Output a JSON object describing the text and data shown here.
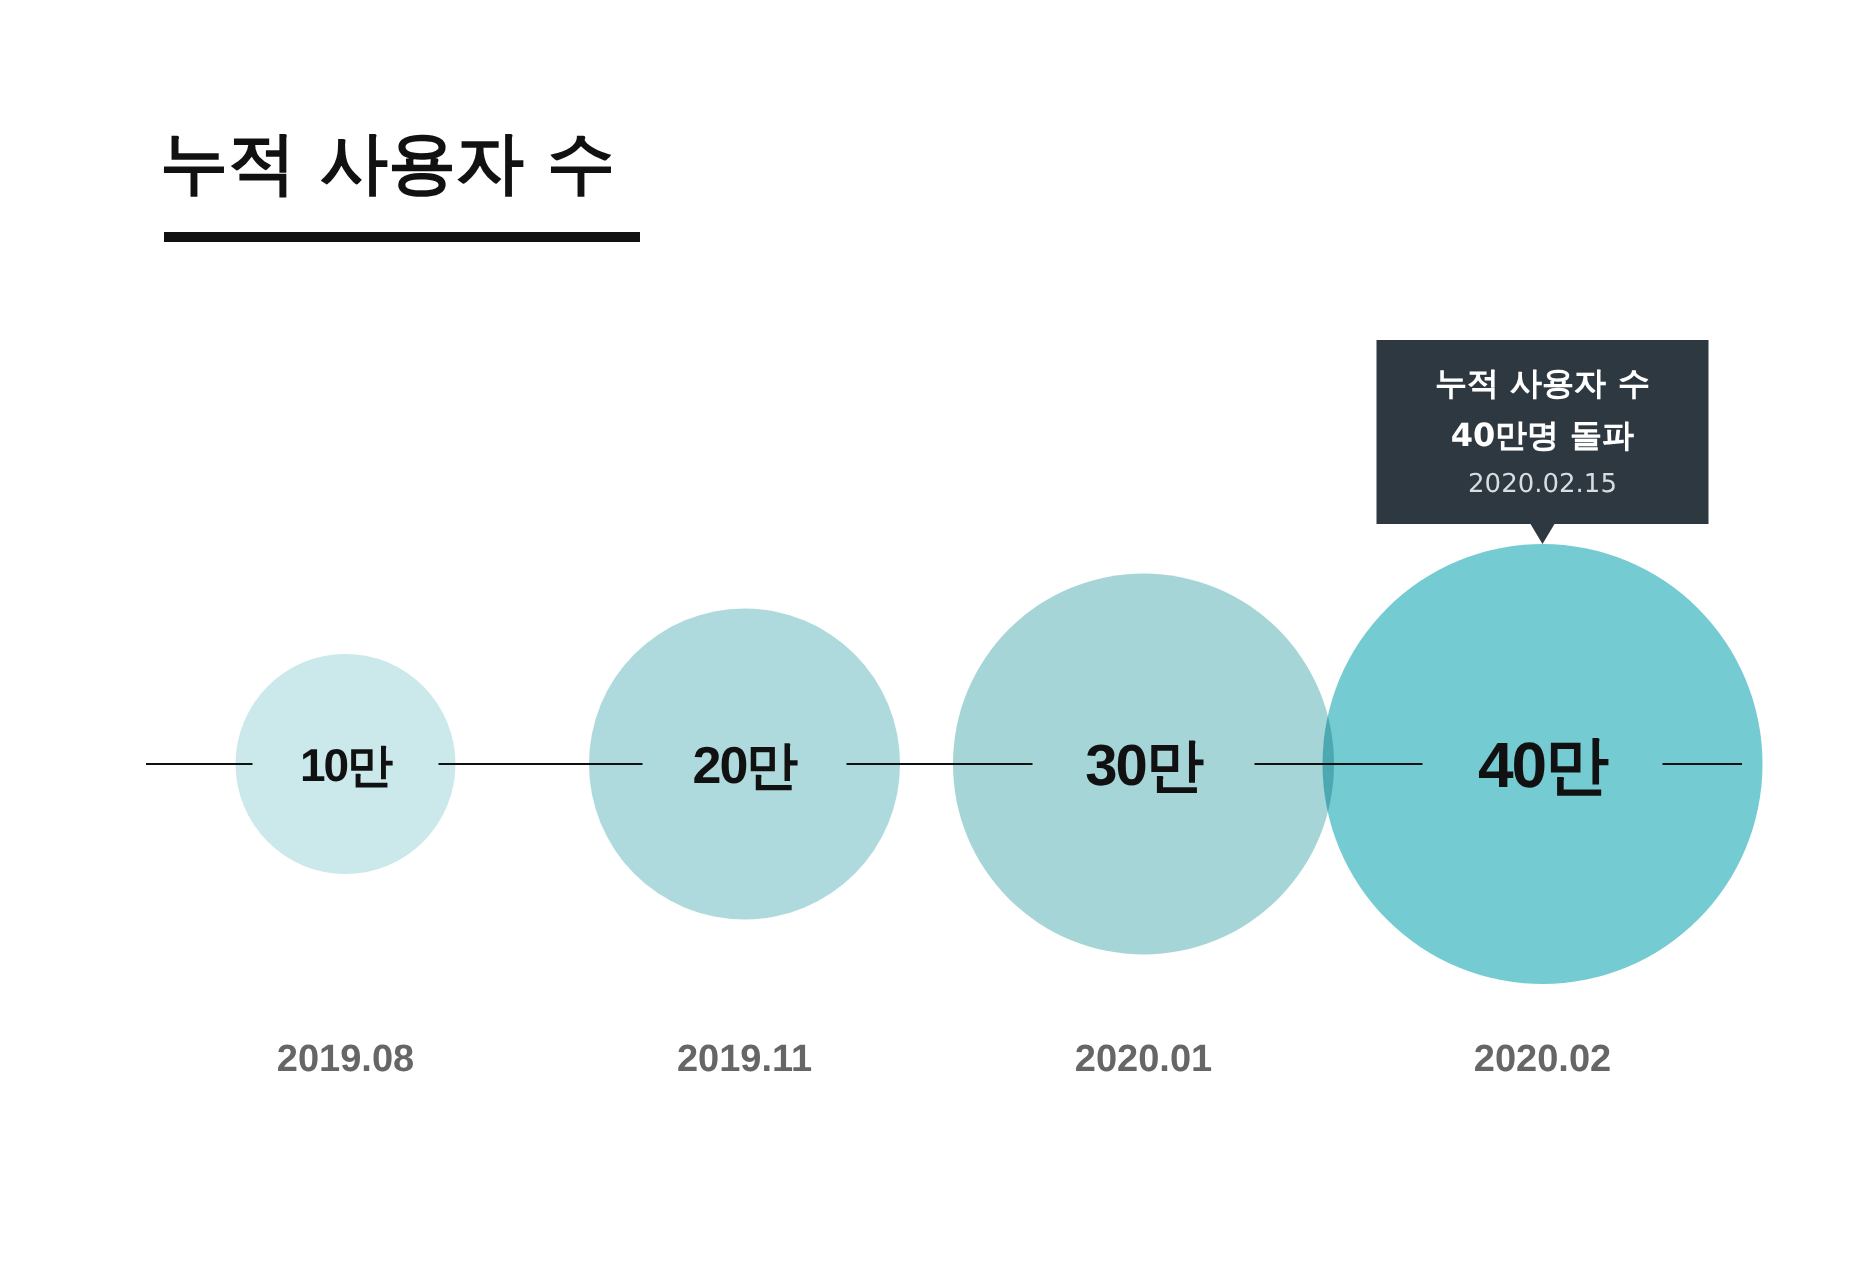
{
  "chart_data": {
    "type": "other",
    "title": "누적 사용자 수",
    "categories": [
      "2019.08",
      "2019.11",
      "2020.01",
      "2020.02"
    ],
    "values": [
      10,
      20,
      30,
      40
    ],
    "value_labels": [
      "10만",
      "20만",
      "30만",
      "40만"
    ],
    "colors": [
      "#cbe9eb",
      "#afdadd",
      "#a6d5d8",
      "#75cbd2"
    ],
    "annotations": [
      "누적 사용자 수\n40만명 돌파\n2020.02.15"
    ]
  }
}
